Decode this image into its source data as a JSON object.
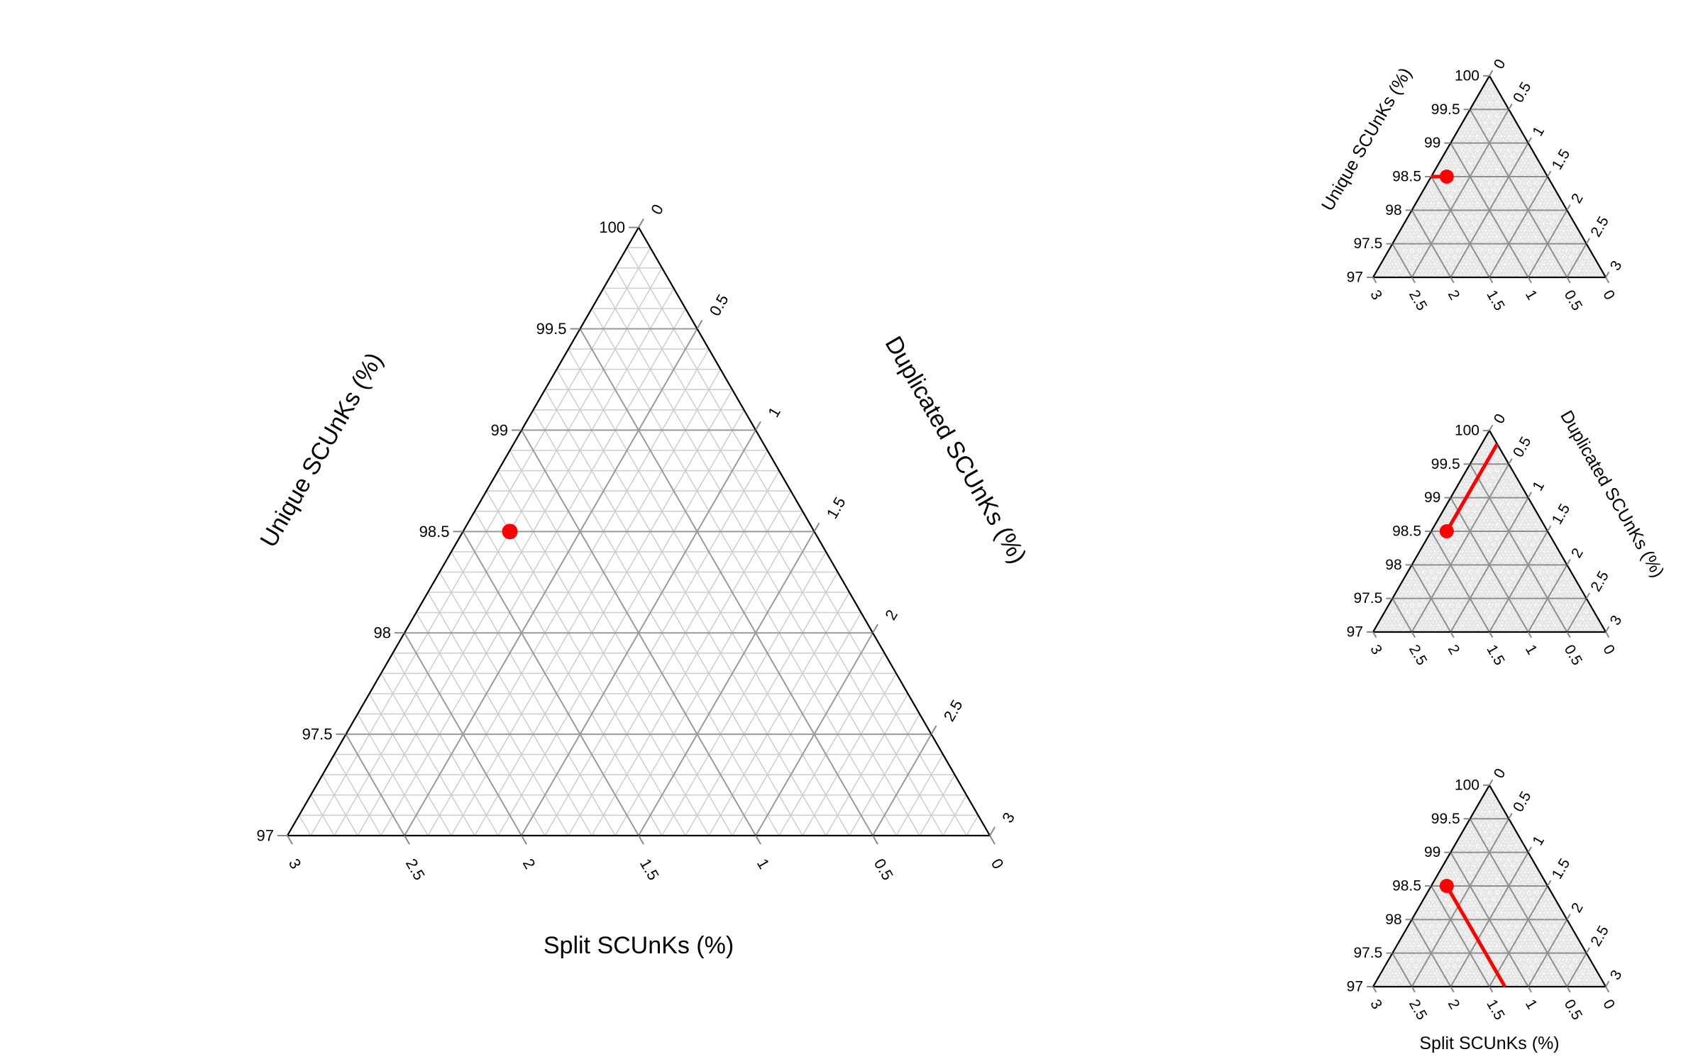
{
  "chart_data": [
    {
      "type": "ternary-scatter",
      "role": "main",
      "axes": {
        "a": {
          "label": "Unique SCUnKs (%)",
          "range": [
            97,
            100
          ],
          "ticks": [
            97,
            97.5,
            98,
            98.5,
            99,
            99.5,
            100
          ],
          "tick_labels": [
            "97",
            "97.5",
            "98",
            "98.5",
            "99",
            "99.5",
            "100"
          ]
        },
        "b": {
          "label": "Duplicated SCUnKs (%)",
          "range": [
            0,
            3
          ],
          "ticks": [
            0,
            0.5,
            1,
            1.5,
            2,
            2.5,
            3
          ],
          "tick_labels": [
            "0",
            "0.5",
            "1",
            "1.5",
            "2",
            "2.5",
            "3"
          ]
        },
        "c": {
          "label": "Split SCUnKs (%)",
          "range": [
            0,
            3
          ],
          "ticks": [
            3,
            2.5,
            2,
            1.5,
            1,
            0.5,
            0
          ],
          "tick_labels": [
            "3",
            "2.5",
            "2",
            "1.5",
            "1",
            "0.5",
            "0"
          ]
        }
      },
      "points": [
        {
          "unique": 98.5,
          "duplicated": 0.2,
          "split": 1.3,
          "color": "#ff0000"
        }
      ],
      "guide_line": "none",
      "grid": true,
      "minor_grid": true
    },
    {
      "type": "ternary-scatter",
      "role": "inset-1",
      "axes": {
        "a": {
          "label": "Unique SCUnKs (%)",
          "range": [
            97,
            100
          ],
          "tick_labels": [
            "97",
            "97.5",
            "98",
            "98.5",
            "99",
            "99.5",
            "100"
          ]
        },
        "b": {
          "label": "",
          "range": [
            0,
            3
          ],
          "tick_labels": [
            "0",
            "0.5",
            "1",
            "1.5",
            "2",
            "2.5",
            "3"
          ]
        },
        "c": {
          "label": "",
          "range": [
            0,
            3
          ],
          "tick_labels": [
            "3",
            "2.5",
            "2",
            "1.5",
            "1",
            "0.5",
            "0"
          ]
        }
      },
      "points": [
        {
          "unique": 98.5,
          "duplicated": 0.2,
          "split": 1.3,
          "color": "#ff0000"
        }
      ],
      "guide_line": "unique",
      "grid": true
    },
    {
      "type": "ternary-scatter",
      "role": "inset-2",
      "axes": {
        "a": {
          "label": "",
          "range": [
            97,
            100
          ],
          "tick_labels": [
            "97",
            "97.5",
            "98",
            "98.5",
            "99",
            "99.5",
            "100"
          ]
        },
        "b": {
          "label": "Duplicated SCUnKs (%)",
          "range": [
            0,
            3
          ],
          "tick_labels": [
            "0",
            "0.5",
            "1",
            "1.5",
            "2",
            "2.5",
            "3"
          ]
        },
        "c": {
          "label": "",
          "range": [
            0,
            3
          ],
          "tick_labels": [
            "3",
            "2.5",
            "2",
            "1.5",
            "1",
            "0.5",
            "0"
          ]
        }
      },
      "points": [
        {
          "unique": 98.5,
          "duplicated": 0.2,
          "split": 1.3,
          "color": "#ff0000"
        }
      ],
      "guide_line": "duplicated",
      "grid": true
    },
    {
      "type": "ternary-scatter",
      "role": "inset-3",
      "axes": {
        "a": {
          "label": "",
          "range": [
            97,
            100
          ],
          "tick_labels": [
            "97",
            "97.5",
            "98",
            "98.5",
            "99",
            "99.5",
            "100"
          ]
        },
        "b": {
          "label": "",
          "range": [
            0,
            3
          ],
          "tick_labels": [
            "0",
            "0.5",
            "1",
            "1.5",
            "2",
            "2.5",
            "3"
          ]
        },
        "c": {
          "label": "Split SCUnKs (%)",
          "range": [
            0,
            3
          ],
          "tick_labels": [
            "3",
            "2.5",
            "2",
            "1.5",
            "1",
            "0.5",
            "0"
          ]
        }
      },
      "points": [
        {
          "unique": 98.5,
          "duplicated": 0.2,
          "split": 1.3,
          "color": "#ff0000"
        }
      ],
      "guide_line": "split",
      "grid": true
    }
  ]
}
